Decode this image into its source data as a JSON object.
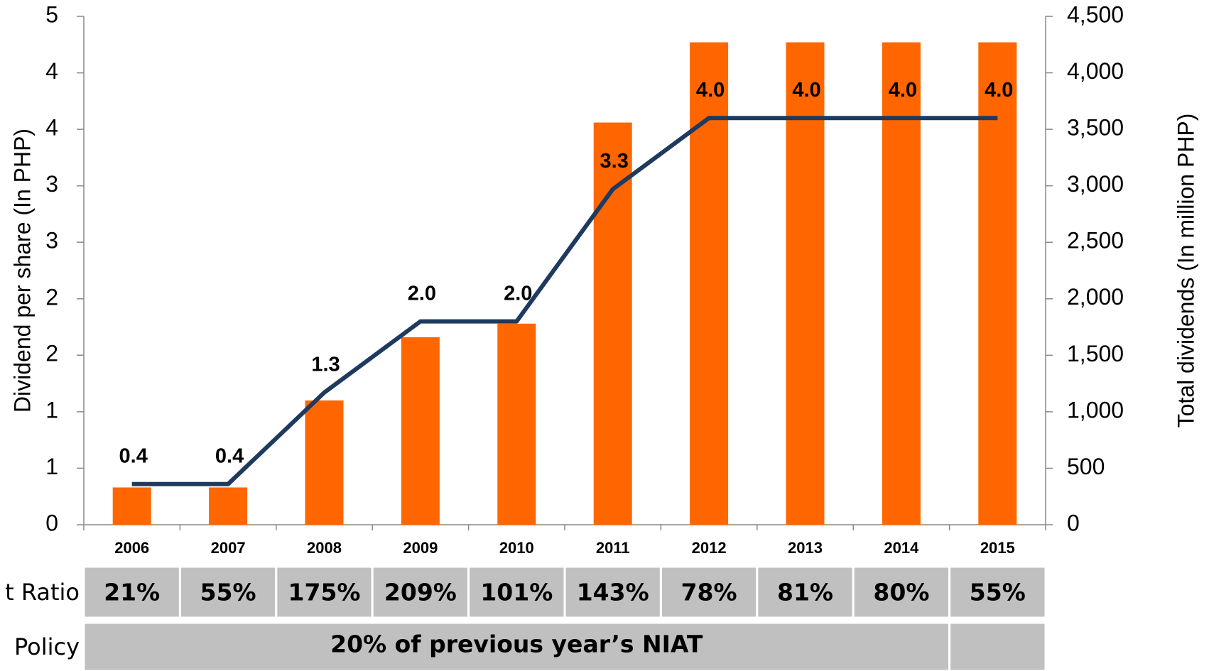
{
  "chart_data": {
    "type": "bar-line",
    "y_label": "Dividend per share (In PHP)",
    "y2_label": "Total dividends (In million PHP)",
    "categories": [
      "2006",
      "2007",
      "2008",
      "2009",
      "2010",
      "2011",
      "2012",
      "2013",
      "2014",
      "2015"
    ],
    "series": [
      {
        "type": "bar",
        "axis": "y2",
        "color": "#ff6600",
        "values": [
          330,
          330,
          1100,
          1660,
          1780,
          3560,
          4270,
          4270,
          4270,
          4270
        ]
      },
      {
        "type": "line",
        "axis": "y",
        "color": "#1f3a5f",
        "values": [
          0.4,
          0.4,
          1.3,
          2.0,
          2.0,
          3.3,
          4.0,
          4.0,
          4.0,
          4.0
        ],
        "value_labels": [
          "0.4",
          "0.4",
          "1.3",
          "2.0",
          "2.0",
          "3.3",
          "4.0",
          "4.0",
          "4.0",
          "4.0"
        ]
      }
    ],
    "ylim": [
      0,
      5
    ],
    "yticks": [
      0,
      {
        "value": 0.556,
        "label": "1"
      },
      {
        "value": 1.111,
        "label": "1"
      },
      {
        "value": 1.667,
        "label": "2"
      },
      {
        "value": 2.222,
        "label": "2"
      },
      {
        "value": 2.778,
        "label": "3"
      },
      {
        "value": 3.333,
        "label": "3"
      },
      {
        "value": 3.889,
        "label": "4"
      },
      {
        "value": 4.444,
        "label": "4"
      },
      5
    ],
    "y2lim": [
      0,
      4500
    ],
    "y2ticks": [
      0,
      500,
      {
        "value": 1000,
        "label": "1,000"
      },
      {
        "value": 1500,
        "label": "1,500"
      },
      {
        "value": 2000,
        "label": "2,000"
      },
      {
        "value": 2500,
        "label": "2,500"
      },
      {
        "value": 3000,
        "label": "3,000"
      },
      {
        "value": 3500,
        "label": "3,500"
      },
      {
        "value": 4000,
        "label": "4,000"
      },
      {
        "value": 4500,
        "label": "4,500"
      }
    ]
  },
  "table": {
    "rows": [
      {
        "label": "t Ratio",
        "cells": [
          "21%",
          "55%",
          "175%",
          "209%",
          "101%",
          "143%",
          "78%",
          "81%",
          "80%",
          "55%"
        ]
      },
      {
        "label": "Policy",
        "cells": [
          "20% of previous year’s NIAT"
        ]
      }
    ]
  }
}
